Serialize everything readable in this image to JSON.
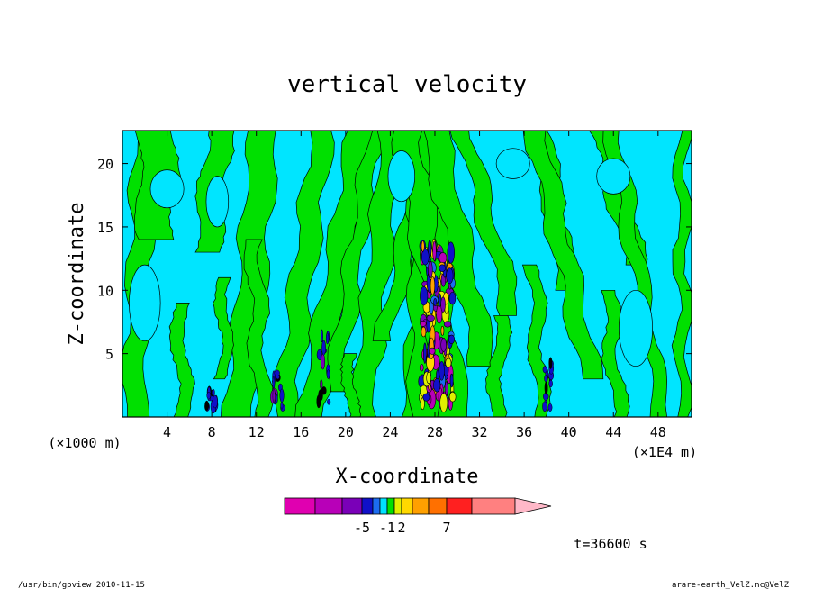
{
  "chart_data": {
    "type": "heatmap",
    "title": "vertical velocity",
    "xlabel": "X-coordinate",
    "ylabel": "Z-coordinate",
    "x_unit_left": "(×1000 m)",
    "x_unit_right": "(×1E4 m)",
    "xlim": [
      0,
      51
    ],
    "ylim": [
      0,
      22.6
    ],
    "x_ticks": [
      4,
      8,
      12,
      16,
      20,
      24,
      28,
      32,
      36,
      40,
      44,
      48
    ],
    "y_ticks": [
      5,
      10,
      15,
      20
    ],
    "colorbar": {
      "colors": [
        "#e000b0",
        "#b800b8",
        "#7a00b8",
        "#1010c8",
        "#1c6cf0",
        "#00e0ff",
        "#00e000",
        "#e0f000",
        "#ffd800",
        "#ffa000",
        "#ff7000",
        "#ff2020",
        "#ff8080",
        "#ffb8c8"
      ],
      "labels": [
        "-5",
        "-1",
        "2",
        "7"
      ]
    },
    "background_color": "#00e5ff",
    "positive_color": "#00e000",
    "time_label": "t=36600 s"
  },
  "footer": {
    "left": "/usr/bin/gpview  2010-11-15",
    "right": "arare-earth_VelZ.nc@VelZ"
  }
}
